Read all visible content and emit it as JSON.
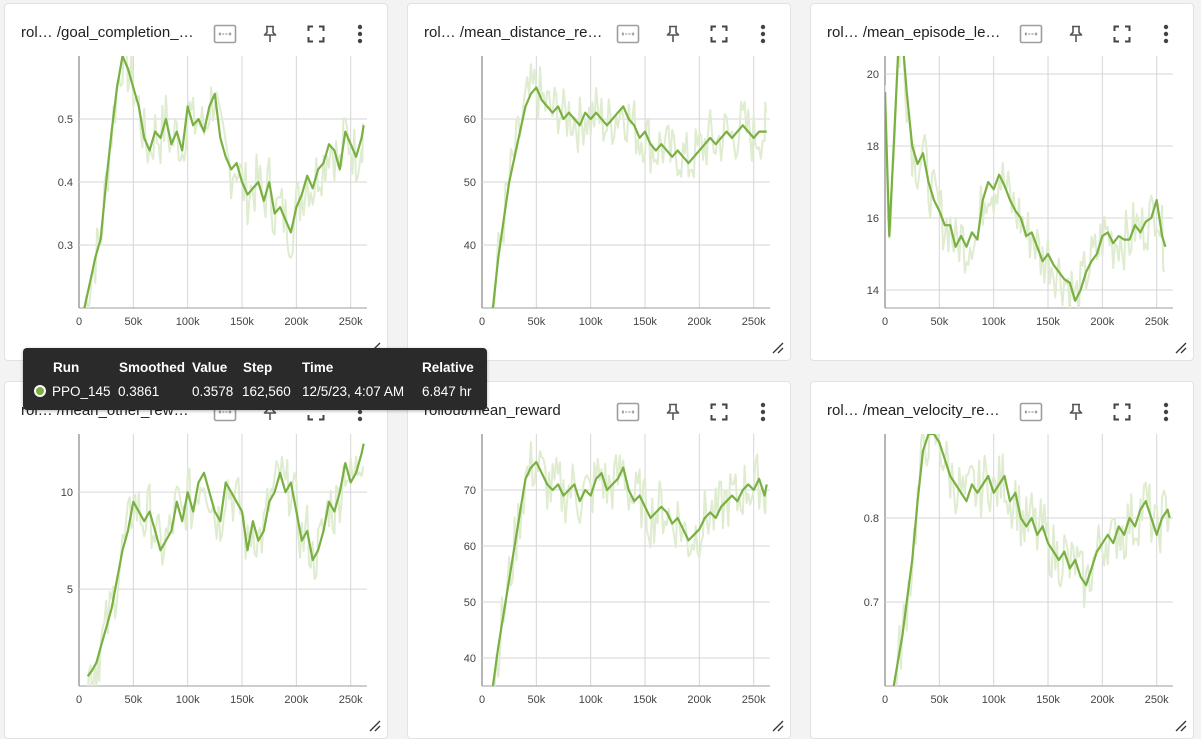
{
  "colors": {
    "smoothed": "#79b042",
    "raw": "#dfecd0",
    "grid": "#d6d6d6",
    "axis": "#9e9e9e"
  },
  "x_ticks": [
    "0",
    "50k",
    "100k",
    "150k",
    "200k",
    "250k"
  ],
  "icons": [
    "fit-domain-icon",
    "pin-icon",
    "fullscreen-icon",
    "more-vert-icon",
    "resize-icon"
  ],
  "cards": [
    {
      "title": "rol… /goal_completion_…",
      "y_ticks": [
        "0.3",
        "0.4",
        "0.5"
      ]
    },
    {
      "title": "rol… /mean_distance_re…",
      "y_ticks": [
        "40",
        "50",
        "60"
      ]
    },
    {
      "title": "rol… /mean_episode_le…",
      "y_ticks": [
        "14",
        "16",
        "18",
        "20"
      ]
    },
    {
      "title": "rol… /mean_other_rew…",
      "y_ticks": [
        "5",
        "10"
      ]
    },
    {
      "title": "rollout/mean_reward",
      "y_ticks": [
        "40",
        "50",
        "60",
        "70"
      ]
    },
    {
      "title": "rol… /mean_velocity_re…",
      "y_ticks": [
        "0.7",
        "0.8"
      ]
    }
  ],
  "tooltip": {
    "headers": {
      "run": "Run",
      "smoothed": "Smoothed",
      "value": "Value",
      "step": "Step",
      "time": "Time",
      "relative": "Relative"
    },
    "row": {
      "run": "PPO_145",
      "smoothed": "0.3861",
      "value": "0.3578",
      "step": "162,560",
      "time": "12/5/23, 4:07 AM",
      "relative": "6.847 hr"
    },
    "run_color": "#79b042"
  },
  "chart_data": [
    {
      "type": "line",
      "title": "rol… /goal_completion_…",
      "xlim": [
        0,
        265000
      ],
      "ylim": [
        0.2,
        0.6
      ],
      "series": [
        {
          "x": [
            5000,
            10000,
            15000,
            20000,
            25000,
            30000,
            35000,
            40000,
            45000,
            50000,
            55000,
            60000,
            65000,
            70000,
            75000,
            80000,
            85000,
            90000,
            95000,
            100000,
            105000,
            110000,
            115000,
            120000,
            125000,
            130000,
            135000,
            140000,
            145000,
            150000,
            155000,
            160000,
            165000,
            170000,
            175000,
            180000,
            185000,
            190000,
            195000,
            200000,
            205000,
            210000,
            215000,
            220000,
            225000,
            230000,
            235000,
            240000,
            245000,
            250000,
            255000,
            260000,
            262000
          ],
          "y": [
            0.2,
            0.24,
            0.28,
            0.31,
            0.4,
            0.48,
            0.55,
            0.6,
            0.58,
            0.55,
            0.52,
            0.47,
            0.45,
            0.48,
            0.47,
            0.5,
            0.46,
            0.48,
            0.45,
            0.52,
            0.49,
            0.5,
            0.48,
            0.52,
            0.54,
            0.47,
            0.44,
            0.42,
            0.43,
            0.4,
            0.38,
            0.39,
            0.4,
            0.37,
            0.4,
            0.35,
            0.36,
            0.34,
            0.32,
            0.36,
            0.38,
            0.41,
            0.39,
            0.42,
            0.43,
            0.46,
            0.45,
            0.42,
            0.48,
            0.46,
            0.44,
            0.47,
            0.49
          ]
        }
      ]
    },
    {
      "type": "line",
      "title": "rol… /mean_distance_re…",
      "xlim": [
        0,
        265000
      ],
      "ylim": [
        30,
        70
      ],
      "series": [
        {
          "x": [
            10000,
            15000,
            20000,
            25000,
            30000,
            35000,
            40000,
            45000,
            50000,
            55000,
            60000,
            65000,
            70000,
            75000,
            80000,
            85000,
            90000,
            95000,
            100000,
            105000,
            110000,
            115000,
            120000,
            125000,
            130000,
            135000,
            140000,
            145000,
            150000,
            155000,
            160000,
            165000,
            170000,
            175000,
            180000,
            185000,
            190000,
            195000,
            200000,
            205000,
            210000,
            215000,
            220000,
            225000,
            230000,
            235000,
            240000,
            245000,
            250000,
            255000,
            260000,
            262000
          ],
          "y": [
            30,
            38,
            44,
            50,
            54,
            58,
            62,
            64,
            65,
            63,
            62,
            61,
            62,
            60,
            61,
            60,
            59,
            61,
            60,
            61,
            60,
            59,
            60,
            61,
            62,
            60,
            59,
            57,
            58,
            56,
            55,
            56,
            55,
            54,
            55,
            54,
            53,
            54,
            55,
            56,
            57,
            56,
            57,
            58,
            57,
            58,
            59,
            58,
            57,
            58,
            58,
            58
          ]
        }
      ]
    },
    {
      "type": "line",
      "title": "rol… /mean_episode_le…",
      "xlim": [
        0,
        265000
      ],
      "ylim": [
        13.5,
        20.5
      ],
      "series": [
        {
          "x": [
            0,
            4000,
            8000,
            12000,
            16000,
            20000,
            25000,
            30000,
            35000,
            40000,
            45000,
            50000,
            55000,
            60000,
            65000,
            70000,
            75000,
            80000,
            85000,
            90000,
            95000,
            100000,
            105000,
            110000,
            115000,
            120000,
            125000,
            130000,
            135000,
            140000,
            145000,
            150000,
            155000,
            160000,
            165000,
            170000,
            175000,
            180000,
            185000,
            190000,
            195000,
            200000,
            205000,
            210000,
            215000,
            220000,
            225000,
            230000,
            235000,
            240000,
            245000,
            250000,
            255000,
            258000
          ],
          "y": [
            19.5,
            15.5,
            18,
            20.5,
            21,
            19.5,
            18,
            17.5,
            17.8,
            17,
            16.5,
            16.2,
            15.8,
            15.8,
            15.2,
            15.5,
            15.2,
            15.6,
            15.4,
            16.5,
            17,
            16.8,
            17.2,
            16.9,
            16.5,
            16.2,
            16,
            15.5,
            15.6,
            15.2,
            14.8,
            15,
            14.7,
            14.5,
            14.3,
            14.2,
            13.7,
            14,
            14.5,
            14.8,
            15,
            15.5,
            15.6,
            15.3,
            15.5,
            15.4,
            15.4,
            15.8,
            15.6,
            15.9,
            16,
            16.5,
            15.5,
            15.2
          ]
        }
      ]
    },
    {
      "type": "line",
      "title": "rol… /mean_other_rew…",
      "xlim": [
        0,
        265000
      ],
      "ylim": [
        0,
        13
      ],
      "series": [
        {
          "x": [
            8000,
            12000,
            16000,
            20000,
            25000,
            30000,
            35000,
            40000,
            45000,
            50000,
            55000,
            60000,
            65000,
            70000,
            75000,
            80000,
            85000,
            90000,
            95000,
            100000,
            105000,
            110000,
            115000,
            120000,
            125000,
            130000,
            135000,
            140000,
            145000,
            150000,
            155000,
            160000,
            165000,
            170000,
            175000,
            180000,
            185000,
            190000,
            195000,
            200000,
            205000,
            210000,
            215000,
            220000,
            225000,
            230000,
            235000,
            240000,
            245000,
            250000,
            255000,
            260000,
            262000
          ],
          "y": [
            0.5,
            0.8,
            1.2,
            2,
            3,
            4,
            5.5,
            7,
            8,
            9.5,
            9,
            8.5,
            9,
            8,
            7,
            7.5,
            8,
            9.5,
            8.5,
            10,
            9,
            10.5,
            11,
            10,
            9,
            8.5,
            10.5,
            10,
            9.5,
            9,
            7,
            8.5,
            7.5,
            8,
            9.5,
            10,
            11,
            10,
            10.5,
            9,
            7.5,
            8,
            6.5,
            7,
            8,
            9.5,
            9,
            10,
            11.5,
            10.5,
            11,
            12,
            12.5
          ]
        }
      ]
    },
    {
      "type": "line",
      "title": "rollout/mean_reward",
      "xlim": [
        0,
        265000
      ],
      "ylim": [
        35,
        80
      ],
      "series": [
        {
          "x": [
            10000,
            15000,
            20000,
            25000,
            30000,
            35000,
            40000,
            45000,
            50000,
            55000,
            60000,
            65000,
            70000,
            75000,
            80000,
            85000,
            90000,
            95000,
            100000,
            105000,
            110000,
            115000,
            120000,
            125000,
            130000,
            135000,
            140000,
            145000,
            150000,
            155000,
            160000,
            165000,
            170000,
            175000,
            180000,
            185000,
            190000,
            195000,
            200000,
            205000,
            210000,
            215000,
            220000,
            225000,
            230000,
            235000,
            240000,
            245000,
            250000,
            255000,
            260000,
            262000
          ],
          "y": [
            35,
            42,
            48,
            54,
            60,
            66,
            72,
            74,
            75,
            73,
            71,
            70,
            71,
            69,
            70,
            71,
            68,
            70,
            69,
            72,
            73,
            70,
            71,
            72,
            74,
            70,
            68,
            69,
            67,
            65,
            66,
            67,
            66,
            64,
            65,
            63,
            61,
            62,
            63,
            65,
            66,
            65,
            67,
            68,
            69,
            68,
            70,
            71,
            70,
            72,
            69,
            71
          ]
        }
      ]
    },
    {
      "type": "line",
      "title": "rol… /mean_velocity_re…",
      "xlim": [
        0,
        265000
      ],
      "ylim": [
        0.6,
        0.9
      ],
      "series": [
        {
          "x": [
            8000,
            12000,
            16000,
            20000,
            25000,
            30000,
            35000,
            40000,
            45000,
            50000,
            55000,
            60000,
            65000,
            70000,
            75000,
            80000,
            85000,
            90000,
            95000,
            100000,
            105000,
            110000,
            115000,
            120000,
            125000,
            130000,
            135000,
            140000,
            145000,
            150000,
            155000,
            160000,
            165000,
            170000,
            175000,
            180000,
            185000,
            190000,
            195000,
            200000,
            205000,
            210000,
            215000,
            220000,
            225000,
            230000,
            235000,
            240000,
            245000,
            250000,
            255000,
            260000,
            262000
          ],
          "y": [
            0.6,
            0.63,
            0.66,
            0.7,
            0.75,
            0.82,
            0.88,
            0.9,
            0.9,
            0.89,
            0.87,
            0.85,
            0.84,
            0.83,
            0.82,
            0.84,
            0.83,
            0.84,
            0.85,
            0.83,
            0.84,
            0.85,
            0.82,
            0.83,
            0.8,
            0.79,
            0.8,
            0.78,
            0.79,
            0.77,
            0.76,
            0.75,
            0.76,
            0.74,
            0.75,
            0.73,
            0.72,
            0.74,
            0.76,
            0.77,
            0.78,
            0.77,
            0.79,
            0.78,
            0.8,
            0.79,
            0.81,
            0.82,
            0.8,
            0.78,
            0.8,
            0.81,
            0.8
          ]
        }
      ]
    }
  ]
}
